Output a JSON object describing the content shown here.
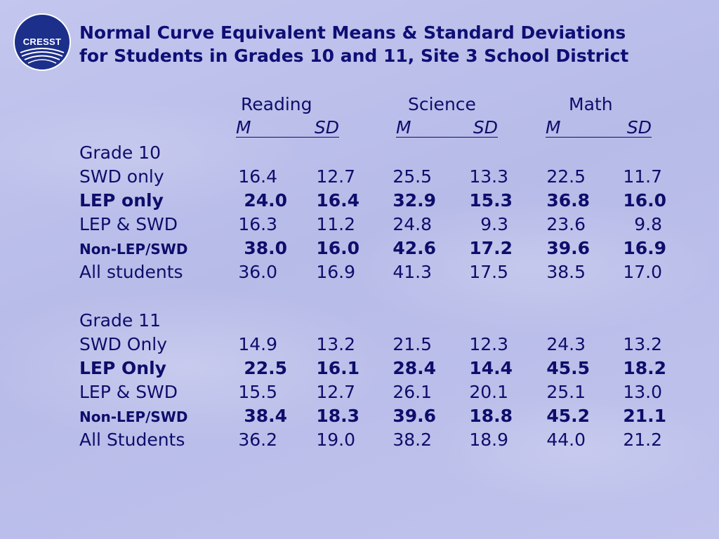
{
  "logo": {
    "text": "CRESST"
  },
  "title": {
    "line1": "Normal Curve Equivalent Means & Standard Deviations",
    "line2": "for Students in Grades 10 and 11, Site 3 School District"
  },
  "subjects": {
    "reading": "Reading",
    "science": "Science",
    "math": "Math"
  },
  "stat_headers": {
    "reading": {
      "m": "M",
      "sd": "SD"
    },
    "science": {
      "m": "M",
      "sd": "SD"
    },
    "math": {
      "m": "M",
      "sd": "SD"
    }
  },
  "grade10": {
    "label": "Grade 10",
    "rows": [
      {
        "group": "SWD only",
        "values": [
          "16.4",
          "12.7",
          "25.5",
          "13.3",
          "22.5",
          "11.7"
        ]
      },
      {
        "group": "LEP only",
        "values": [
          "24.0",
          "16.4",
          "32.9",
          "15.3",
          "36.8",
          "16.0"
        ]
      },
      {
        "group": "LEP & SWD",
        "values": [
          "16.3",
          "11.2",
          "24.8",
          "9.3",
          "23.6",
          "9.8"
        ]
      },
      {
        "group": "Non-LEP/SWD",
        "values": [
          "38.0",
          "16.0",
          "42.6",
          "17.2",
          "39.6",
          "16.9"
        ]
      },
      {
        "group": "All students",
        "values": [
          "36.0",
          "16.9",
          "41.3",
          "17.5",
          "38.5",
          "17.0"
        ]
      }
    ]
  },
  "grade11": {
    "label": "Grade 11",
    "rows": [
      {
        "group": "SWD Only",
        "values": [
          "14.9",
          "13.2",
          "21.5",
          "12.3",
          "24.3",
          "13.2"
        ]
      },
      {
        "group": "LEP Only",
        "values": [
          "22.5",
          "16.1",
          "28.4",
          "14.4",
          "45.5",
          "18.2"
        ]
      },
      {
        "group": "LEP & SWD",
        "values": [
          "15.5",
          "12.7",
          "26.1",
          "20.1",
          "25.1",
          "13.0"
        ]
      },
      {
        "group": "Non-LEP/SWD",
        "values": [
          "38.4",
          "18.3",
          "39.6",
          "18.8",
          "45.2",
          "21.1"
        ]
      },
      {
        "group": "All Students",
        "values": [
          "36.2",
          "19.0",
          "38.2",
          "18.9",
          "44.0",
          "21.2"
        ]
      }
    ]
  }
}
